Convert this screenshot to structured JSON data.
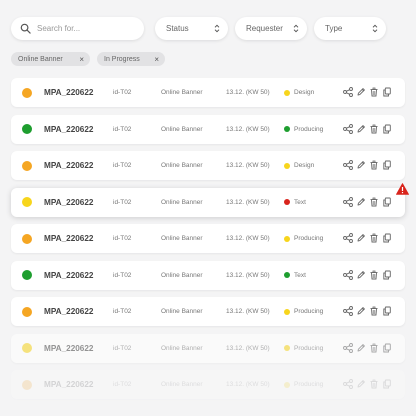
{
  "search": {
    "placeholder": "Search for..."
  },
  "filters": [
    {
      "label": "Status"
    },
    {
      "label": "Requester"
    },
    {
      "label": "Type"
    }
  ],
  "chips": [
    {
      "label": "Online Banner"
    },
    {
      "label": "In Progress"
    }
  ],
  "colors": {
    "orange": "#f5a623",
    "green": "#1e9e2f",
    "yellow": "#f7d51c",
    "red": "#d9241c"
  },
  "rows": [
    {
      "dot": "orange",
      "code": "MPA_220622",
      "id": "id-T02",
      "type": "Online Banner",
      "date": "13.12. (KW 50)",
      "status": "Design",
      "status_dot": "yellow",
      "opacity": 1
    },
    {
      "dot": "green",
      "code": "MPA_220622",
      "id": "id-T02",
      "type": "Online Banner",
      "date": "13.12. (KW 50)",
      "status": "Producing",
      "status_dot": "green",
      "opacity": 1
    },
    {
      "dot": "orange",
      "code": "MPA_220622",
      "id": "id-T02",
      "type": "Online Banner",
      "date": "13.12. (KW 50)",
      "status": "Design",
      "status_dot": "yellow",
      "opacity": 1
    },
    {
      "dot": "yellow",
      "code": "MPA_220622",
      "id": "id-T02",
      "type": "Online Banner",
      "date": "13.12. (KW 50)",
      "status": "Text",
      "status_dot": "red",
      "opacity": 1,
      "active": true,
      "warning": true
    },
    {
      "dot": "orange",
      "code": "MPA_220622",
      "id": "id-T02",
      "type": "Online Banner",
      "date": "13.12. (KW 50)",
      "status": "Producing",
      "status_dot": "yellow",
      "opacity": 1
    },
    {
      "dot": "green",
      "code": "MPA_220622",
      "id": "id-T02",
      "type": "Online Banner",
      "date": "13.12. (KW 50)",
      "status": "Text",
      "status_dot": "green",
      "opacity": 1
    },
    {
      "dot": "orange",
      "code": "MPA_220622",
      "id": "id-T02",
      "type": "Online Banner",
      "date": "13.12. (KW 50)",
      "status": "Producing",
      "status_dot": "yellow",
      "opacity": 1
    },
    {
      "dot": "yellow",
      "code": "MPA_220622",
      "id": "id-T02",
      "type": "Online Banner",
      "date": "13.12. (KW 50)",
      "status": "Producing",
      "status_dot": "yellow",
      "opacity": 0.55
    },
    {
      "dot": "orange",
      "code": "MPA_220622",
      "id": "id-T02",
      "type": "Online Banner",
      "date": "13.12. (KW 50)",
      "status": "Producing",
      "status_dot": "yellow",
      "opacity": 0.18
    }
  ],
  "icons": [
    "share-icon",
    "edit-icon",
    "trash-icon",
    "copy-icon"
  ]
}
